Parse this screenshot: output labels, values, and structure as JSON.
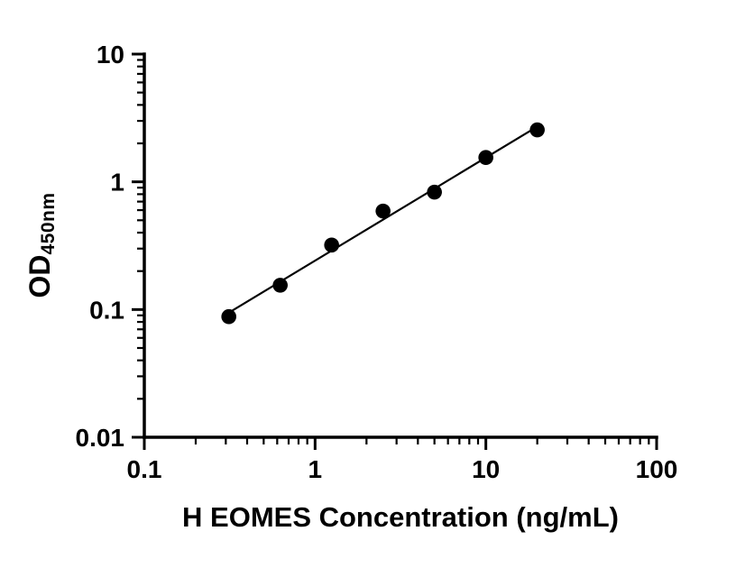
{
  "chart_data": {
    "type": "scatter",
    "title": "",
    "xlabel": "H EOMES Concentration (ng/mL)",
    "ylabel_main": "OD",
    "ylabel_sub": "450nm",
    "x_scale": "log",
    "y_scale": "log",
    "xlim": [
      0.1,
      100
    ],
    "ylim": [
      0.01,
      10
    ],
    "grid": false,
    "x": [
      0.3125,
      0.625,
      1.25,
      2.5,
      5,
      10,
      20
    ],
    "y": [
      0.088,
      0.155,
      0.32,
      0.59,
      0.83,
      1.55,
      2.55
    ],
    "fit_line": {
      "type": "linear-loglog",
      "x_start": 0.3125,
      "x_end": 20
    },
    "x_ticks": [
      {
        "v": 0.1,
        "label": "0.1"
      },
      {
        "v": 1,
        "label": "1"
      },
      {
        "v": 10,
        "label": "10"
      },
      {
        "v": 100,
        "label": "100"
      }
    ],
    "y_ticks": [
      {
        "v": 0.01,
        "label": "0.01"
      },
      {
        "v": 0.1,
        "label": "0.1"
      },
      {
        "v": 1,
        "label": "1"
      },
      {
        "v": 10,
        "label": "10"
      }
    ],
    "marker_color": "#000000",
    "line_color": "#000000",
    "axis_color": "#000000",
    "legend": null
  }
}
